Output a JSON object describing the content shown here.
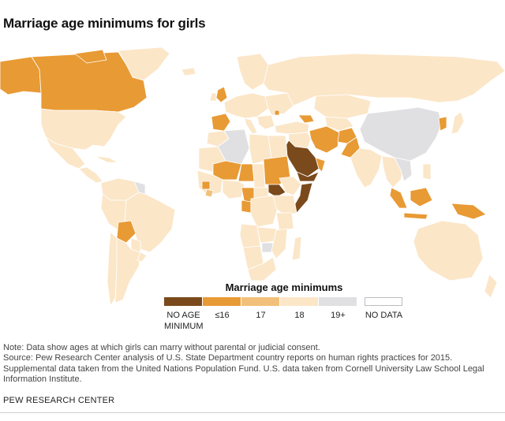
{
  "title": "Marriage age minimums for girls",
  "legend": {
    "title": "Marriage age minimums",
    "items": [
      {
        "label": "NO AGE MINIMUM",
        "color": "#7a4a1c"
      },
      {
        "label": "≤16",
        "color": "#e89a34"
      },
      {
        "label": "17",
        "color": "#f2c07a"
      },
      {
        "label": "18",
        "color": "#fbe6c8"
      },
      {
        "label": "19+",
        "color": "#e0e0e2"
      },
      {
        "label": "NO DATA",
        "color": "#ffffff"
      }
    ]
  },
  "colors": {
    "no_minimum": "#7a4a1c",
    "le16": "#e89a34",
    "age17": "#f2c07a",
    "age18": "#fbe6c8",
    "age19plus": "#e0e0e2",
    "no_data": "#ffffff",
    "borders": "#ffffff",
    "ocean": "#ffffff"
  },
  "notes": [
    "Note: Data show ages at which girls can marry without parental or judicial consent.",
    "Source: Pew Research Center analysis of U.S. State Department country reports on human rights practices for 2015.",
    "Supplemental data taken from the United Nations Population Fund. U.S. data taken from Cornell University Law School Legal",
    "Information Institute."
  ],
  "footer": "PEW RESEARCH CENTER"
}
